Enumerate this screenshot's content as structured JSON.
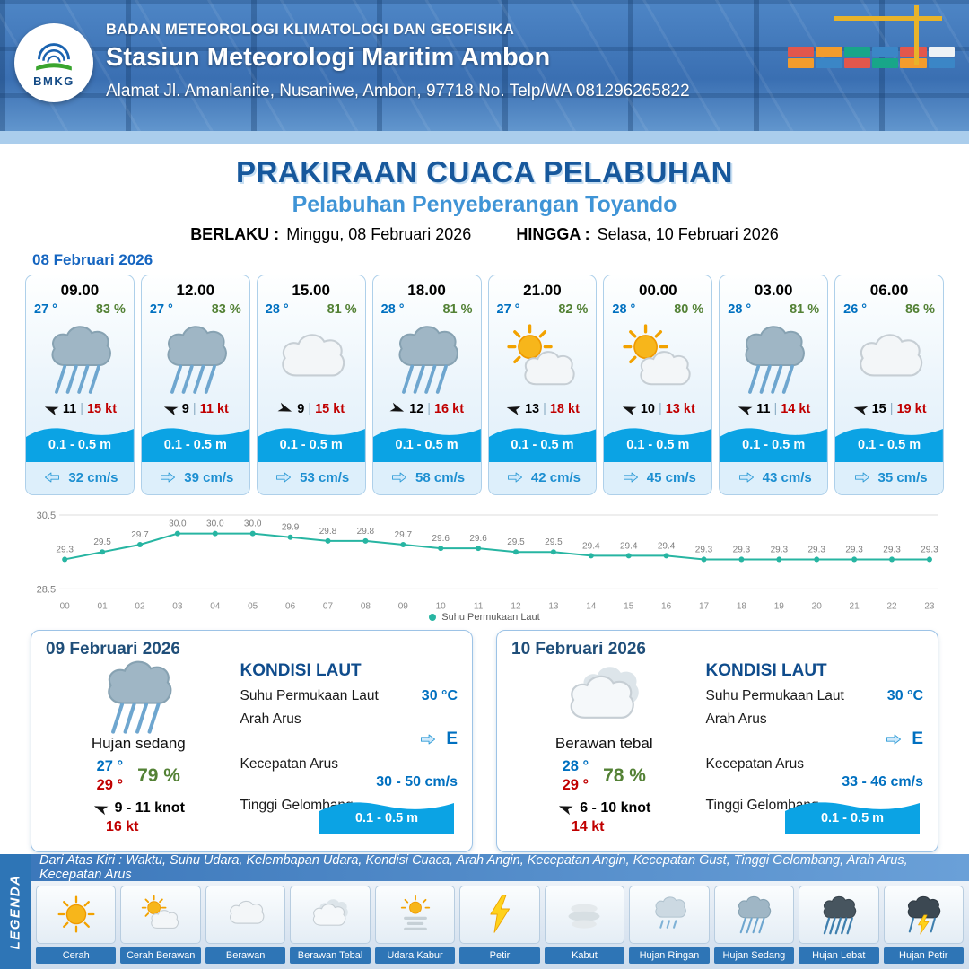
{
  "header": {
    "agency": "BADAN METEOROLOGI KLIMATOLOGI DAN GEOFISIKA",
    "station": "Stasiun Meteorologi Maritim Ambon",
    "address": "Alamat Jl. Amanlanite, Nusaniwe, Ambon, 97718   No. Telp/WA  081296265822",
    "logo_text": "BMKG"
  },
  "title": {
    "main": "PRAKIRAAN CUACA PELABUHAN",
    "sub": "Pelabuhan Penyeberangan Toyando",
    "berlaku_label": "BERLAKU :",
    "berlaku_value": "Minggu, 08 Februari 2026",
    "hingga_label": "HINGGA :",
    "hingga_value": "Selasa, 10 Februari 2026"
  },
  "forecast": {
    "date": "08 Februari 2026",
    "sep": "|",
    "cards": [
      {
        "time": "09.00",
        "temp": "27 °",
        "humidity": "83 %",
        "icon_ref": "#i-rain-mod",
        "wind_speed": "11",
        "gust": "15 kt",
        "wind_dir_deg": 200,
        "wave": "0.1 - 0.5 m",
        "current": "32 cm/s",
        "current_dir_deg": 180
      },
      {
        "time": "12.00",
        "temp": "27 °",
        "humidity": "83 %",
        "icon_ref": "#i-rain-mod",
        "wind_speed": "9",
        "gust": "11 kt",
        "wind_dir_deg": 200,
        "wave": "0.1 - 0.5 m",
        "current": "39 cm/s",
        "current_dir_deg": 0
      },
      {
        "time": "15.00",
        "temp": "28 °",
        "humidity": "81 %",
        "icon_ref": "#i-cloud",
        "wind_speed": "9",
        "gust": "15 kt",
        "wind_dir_deg": 20,
        "wave": "0.1 - 0.5 m",
        "current": "53 cm/s",
        "current_dir_deg": 0
      },
      {
        "time": "18.00",
        "temp": "28 °",
        "humidity": "81 %",
        "icon_ref": "#i-rain-mod",
        "wind_speed": "12",
        "gust": "16 kt",
        "wind_dir_deg": 20,
        "wave": "0.1 - 0.5 m",
        "current": "58 cm/s",
        "current_dir_deg": 0
      },
      {
        "time": "21.00",
        "temp": "27 °",
        "humidity": "82 %",
        "icon_ref": "#i-sun-cloud",
        "wind_speed": "13",
        "gust": "18 kt",
        "wind_dir_deg": 195,
        "wave": "0.1 - 0.5 m",
        "current": "42 cm/s",
        "current_dir_deg": 0
      },
      {
        "time": "00.00",
        "temp": "28 °",
        "humidity": "80 %",
        "icon_ref": "#i-sun-cloud",
        "wind_speed": "10",
        "gust": "13 kt",
        "wind_dir_deg": 200,
        "wave": "0.1 - 0.5 m",
        "current": "45 cm/s",
        "current_dir_deg": 0
      },
      {
        "time": "03.00",
        "temp": "28 °",
        "humidity": "81 %",
        "icon_ref": "#i-rain-mod",
        "wind_speed": "11",
        "gust": "14 kt",
        "wind_dir_deg": 200,
        "wave": "0.1 - 0.5 m",
        "current": "43 cm/s",
        "current_dir_deg": 0
      },
      {
        "time": "06.00",
        "temp": "26 °",
        "humidity": "86 %",
        "icon_ref": "#i-cloud",
        "wind_speed": "15",
        "gust": "19 kt",
        "wind_dir_deg": 195,
        "wave": "0.1 - 0.5 m",
        "current": "35 cm/s",
        "current_dir_deg": 0
      }
    ]
  },
  "chart_data": {
    "type": "line",
    "legend": "Suhu Permukaan Laut",
    "x": [
      "00",
      "01",
      "02",
      "03",
      "04",
      "05",
      "06",
      "07",
      "08",
      "09",
      "10",
      "11",
      "12",
      "13",
      "14",
      "15",
      "16",
      "17",
      "18",
      "19",
      "20",
      "21",
      "22",
      "23"
    ],
    "values": [
      29.3,
      29.5,
      29.7,
      30.0,
      30.0,
      30.0,
      29.9,
      29.8,
      29.8,
      29.7,
      29.6,
      29.6,
      29.5,
      29.5,
      29.4,
      29.4,
      29.4,
      29.3,
      29.3,
      29.3,
      29.3,
      29.3,
      29.3,
      29.3
    ],
    "ylim": [
      28.5,
      30.5
    ],
    "line_color": "#27b5a2",
    "grid": true,
    "legend_position": "bottom"
  },
  "days": [
    {
      "date": "09 Februari 2026",
      "icon_ref": "#i-rain-mod",
      "condition": "Hujan sedang",
      "temp_min": "27 °",
      "temp_max": "29 °",
      "humidity": "79 %",
      "wind_range": "9 - 11 knot",
      "gust": "16 kt",
      "wind_dir_deg": 200,
      "sea": {
        "title": "KONDISI LAUT",
        "sst_label": "Suhu Permukaan Laut",
        "sst_value": "30 °C",
        "current_dir_label": "Arah Arus",
        "current_dir_value": "E",
        "current_speed_label": "Kecepatan Arus",
        "current_speed_value": "30 - 50 cm/s",
        "wave_label": "Tinggi Gelombang",
        "wave_value": "0.1 - 0.5 m"
      }
    },
    {
      "date": "10 Februari 2026",
      "icon_ref": "#i-cloud-thick",
      "condition": "Berawan tebal",
      "temp_min": "28 °",
      "temp_max": "29 °",
      "humidity": "78 %",
      "wind_range": "6 - 10 knot",
      "gust": "14 kt",
      "wind_dir_deg": 200,
      "sea": {
        "title": "KONDISI LAUT",
        "sst_label": "Suhu Permukaan Laut",
        "sst_value": "30 °C",
        "current_dir_label": "Arah Arus",
        "current_dir_value": "E",
        "current_speed_label": "Kecepatan Arus",
        "current_speed_value": "33 - 46 cm/s",
        "wave_label": "Tinggi Gelombang",
        "wave_value": "0.1 - 0.5 m"
      }
    }
  ],
  "legend": {
    "side_label": "LEGENDA",
    "caption": "Dari Atas Kiri : Waktu, Suhu Udara, Kelembapan Udara, Kondisi Cuaca, Arah Angin, Kecepatan Angin, Kecepatan Gust, Tinggi Gelombang, Arah Arus, Kecepatan Arus",
    "items": [
      {
        "label": "Cerah",
        "icon_ref": "#i-sun"
      },
      {
        "label": "Cerah Berawan",
        "icon_ref": "#i-sun-cloud"
      },
      {
        "label": "Berawan",
        "icon_ref": "#i-cloud"
      },
      {
        "label": "Berawan Tebal",
        "icon_ref": "#i-cloud-thick"
      },
      {
        "label": "Udara Kabur",
        "icon_ref": "#i-haze"
      },
      {
        "label": "Petir",
        "icon_ref": "#i-bolt"
      },
      {
        "label": "Kabut",
        "icon_ref": "#i-fog"
      },
      {
        "label": "Hujan Ringan",
        "icon_ref": "#i-rain-light"
      },
      {
        "label": "Hujan Sedang",
        "icon_ref": "#i-rain-mod"
      },
      {
        "label": "Hujan Lebat",
        "icon_ref": "#i-rain-heavy"
      },
      {
        "label": "Hujan Petir",
        "icon_ref": "#i-rain-thunder"
      }
    ]
  }
}
